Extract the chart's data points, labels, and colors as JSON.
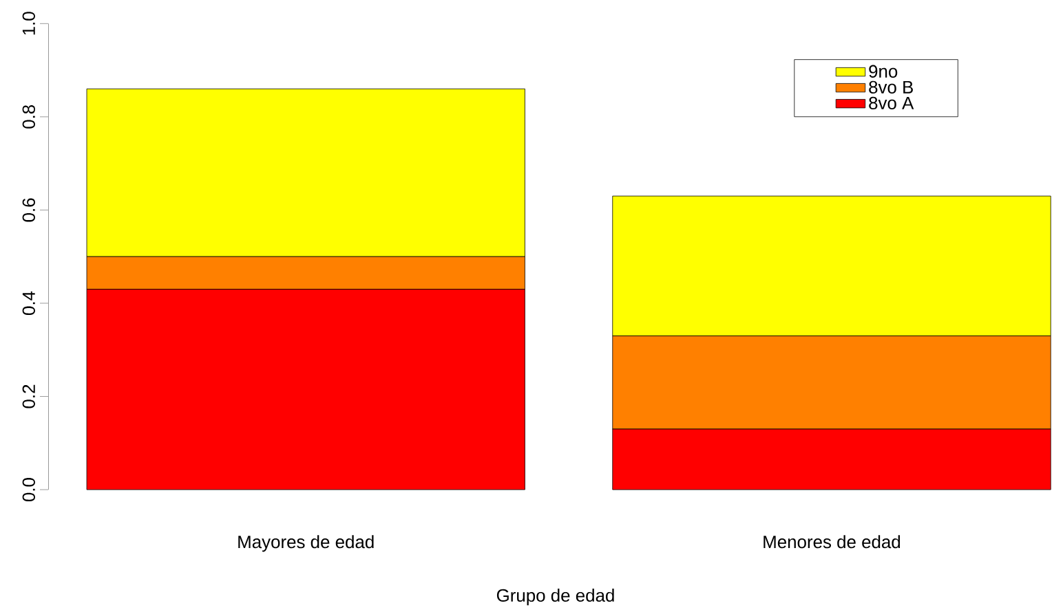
{
  "chart_data": {
    "type": "bar",
    "stacked": true,
    "xlabel": "Grupo de edad",
    "categories": [
      "Mayores de edad",
      "Menores de edad"
    ],
    "series": [
      {
        "name": "8vo A",
        "color": "#ff0000",
        "values": [
          0.43,
          0.13
        ]
      },
      {
        "name": "8vo B",
        "color": "#ff8000",
        "values": [
          0.07,
          0.2
        ]
      },
      {
        "name": "9no",
        "color": "#ffff00",
        "values": [
          0.36,
          0.3
        ]
      }
    ],
    "ylim": [
      0,
      1
    ],
    "yticks": [
      {
        "value": 0,
        "label": "0.0"
      },
      0.2,
      0.4,
      0.6,
      0.8,
      {
        "value": 1,
        "label": "1.0"
      }
    ],
    "legend": "top right",
    "grid": false
  }
}
